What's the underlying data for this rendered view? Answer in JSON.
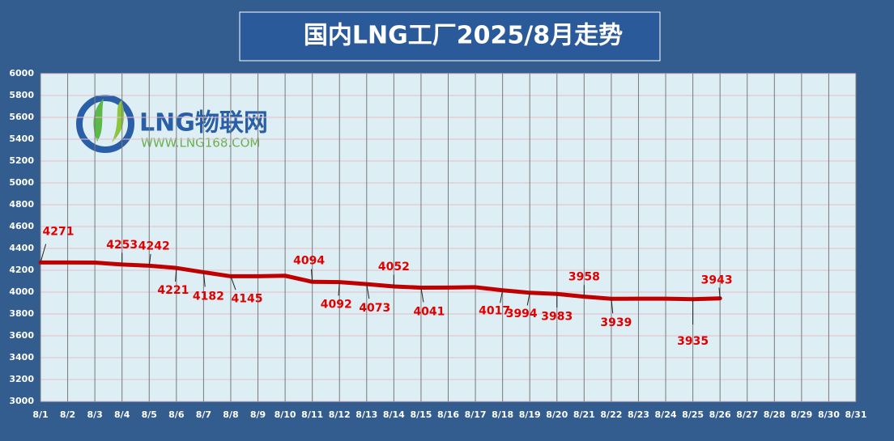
{
  "chart_data": {
    "type": "line",
    "title": "国内LNG工厂2025/8月走势",
    "logo": {
      "name": "LNG物联网",
      "url": "WWW.LNG168.COM"
    },
    "categories": [
      "8/1",
      "8/2",
      "8/3",
      "8/4",
      "8/5",
      "8/6",
      "8/7",
      "8/8",
      "8/9",
      "8/10",
      "8/11",
      "8/12",
      "8/13",
      "8/14",
      "8/15",
      "8/16",
      "8/17",
      "8/18",
      "8/19",
      "8/20",
      "8/21",
      "8/22",
      "8/23",
      "8/24",
      "8/25",
      "8/26",
      "8/27",
      "8/28",
      "8/29",
      "8/30",
      "8/31"
    ],
    "values": [
      4271,
      4271,
      4270,
      4253,
      4242,
      4221,
      4182,
      4145,
      4145,
      4150,
      4094,
      4092,
      4073,
      4052,
      4041,
      4042,
      4045,
      4017,
      3994,
      3983,
      3958,
      3939,
      3940,
      3940,
      3935,
      3943,
      null,
      null,
      null,
      null,
      null
    ],
    "value_labels": [
      4271,
      null,
      null,
      4253,
      4242,
      4221,
      4182,
      4145,
      null,
      null,
      4094,
      4092,
      4073,
      4052,
      4041,
      null,
      null,
      4017,
      3994,
      3983,
      3958,
      3939,
      null,
      null,
      3935,
      3943,
      null,
      null,
      null,
      null,
      null
    ],
    "color": "#c00000",
    "ylim": [
      3000,
      6000
    ],
    "yticks": [
      3000,
      3200,
      3400,
      3600,
      3800,
      4000,
      4200,
      4400,
      4600,
      4800,
      5000,
      5200,
      5400,
      5600,
      5800,
      6000
    ],
    "grid": true
  }
}
